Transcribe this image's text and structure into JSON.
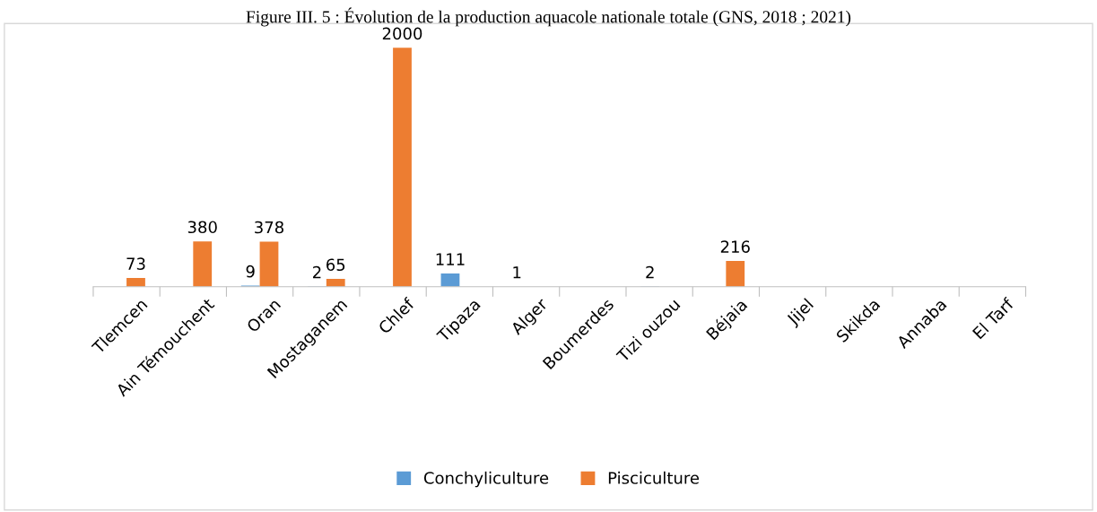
{
  "chart_data": {
    "type": "bar",
    "title": "Figure III. 5 : Évolution de la production aquacole nationale totale (GNS, 2018 ; 2021)",
    "categories": [
      "Tlemcen",
      "Ain Témouchent",
      "Oran",
      "Mostaganem",
      "Chlef",
      "Tipaza",
      "Alger",
      "Boumerdes",
      "Tizi ouzou",
      "Béjaia",
      "Jijel",
      "Skikda",
      "Annaba",
      "El Tarf"
    ],
    "series": [
      {
        "name": "Conchyliculture",
        "color": "#5b9bd5",
        "values": [
          null,
          null,
          9,
          2,
          null,
          111,
          1,
          null,
          2,
          null,
          null,
          null,
          null,
          null
        ]
      },
      {
        "name": "Pisciculture",
        "color": "#ed7d31",
        "values": [
          73,
          380,
          378,
          65,
          2000,
          null,
          null,
          null,
          null,
          216,
          null,
          null,
          null,
          null
        ]
      }
    ],
    "data_labels": true,
    "legend": "bottom",
    "grid": false
  }
}
